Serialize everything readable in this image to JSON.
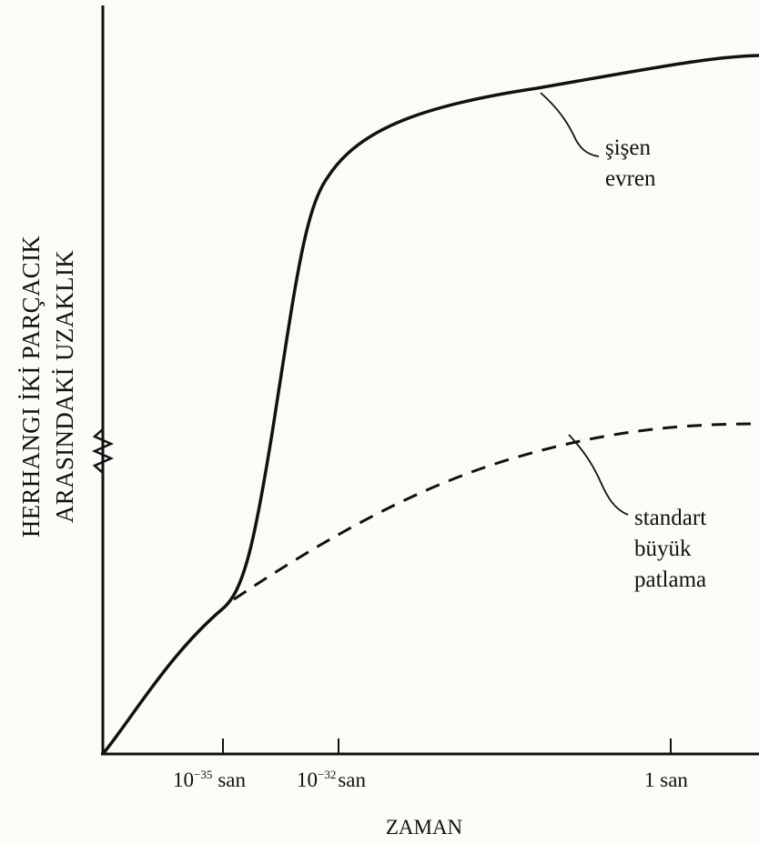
{
  "chart_data": {
    "type": "line",
    "title": "",
    "xlabel": "ZAMAN",
    "ylabel": [
      "HERHANGI İKİ PARÇACIK",
      "ARASINDAKİ UZAKLIK"
    ],
    "x_ticks": [
      {
        "base": "10",
        "exp": "−35",
        "unit": "san"
      },
      {
        "base": "10",
        "exp": "−32",
        "unit": "san"
      },
      {
        "label": "1 san"
      }
    ],
    "y_axis_break": true,
    "series": [
      {
        "name": "şişen evren",
        "annotation_lines": [
          "şişen",
          "evren"
        ],
        "style": "solid",
        "description_points": [
          [
            0,
            0
          ],
          [
            0.08,
            0.19
          ],
          [
            0.19,
            0.25
          ],
          [
            0.22,
            0.33
          ],
          [
            0.3,
            0.81
          ],
          [
            0.42,
            0.88
          ],
          [
            0.65,
            0.95
          ],
          [
            1.0,
            0.96
          ]
        ]
      },
      {
        "name": "standart büyük patlama",
        "annotation_lines": [
          "standart",
          "büyük",
          "patlama"
        ],
        "style": "dashed",
        "description_points": [
          [
            0.19,
            0.25
          ],
          [
            0.35,
            0.35
          ],
          [
            0.55,
            0.44
          ],
          [
            0.8,
            0.49
          ],
          [
            1.0,
            0.5
          ]
        ]
      }
    ],
    "grid": false,
    "legend": "none"
  }
}
